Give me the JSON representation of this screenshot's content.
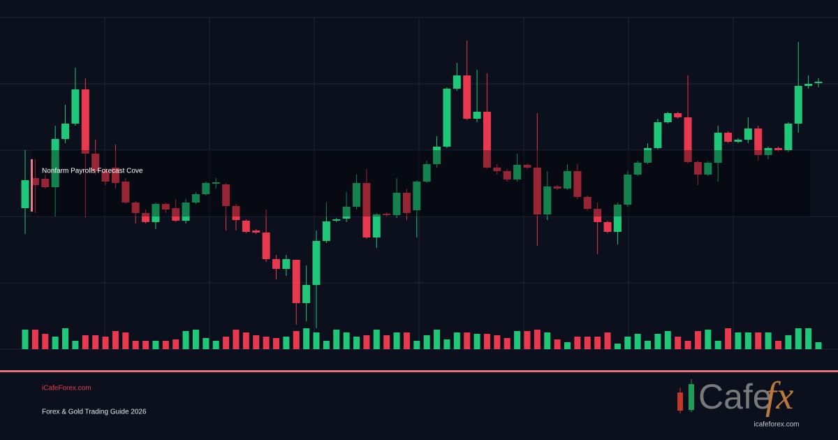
{
  "chart_data": {
    "type": "candlestick",
    "annotation": "Nonfarm Payrolls Forecast Cove",
    "up_color": "#1ec878",
    "down_color": "#e8394f",
    "grid": true,
    "ylim": [
      0,
      475
    ],
    "yticks": [
      0,
      95,
      190,
      285,
      380,
      475
    ],
    "open": [
      202,
      245,
      244,
      232,
      301,
      323,
      372,
      280,
      255,
      260,
      240,
      210,
      195,
      182,
      208,
      202,
      184,
      210,
      222,
      237,
      236,
      205,
      184,
      170,
      167,
      129,
      115,
      128,
      66,
      92,
      155,
      184,
      187,
      204,
      238,
      160,
      194,
      192,
      224,
      199,
      240,
      265,
      290,
      373,
      392,
      330,
      340,
      260,
      255,
      243,
      264,
      260,
      193,
      233,
      230,
      255,
      218,
      201,
      182,
      168,
      207,
      250,
      267,
      288,
      325,
      338,
      332,
      268,
      250,
      267,
      310,
      297,
      300,
      316,
      278,
      288,
      285,
      323,
      377,
      381
    ],
    "high": [
      285,
      272,
      250,
      320,
      350,
      403,
      388,
      300,
      260,
      293,
      245,
      212,
      200,
      210,
      210,
      215,
      215,
      225,
      240,
      245,
      238,
      208,
      186,
      172,
      200,
      135,
      135,
      128,
      120,
      170,
      210,
      188,
      225,
      250,
      258,
      195,
      196,
      245,
      230,
      242,
      270,
      305,
      375,
      410,
      442,
      400,
      395,
      265,
      258,
      280,
      266,
      338,
      255,
      235,
      265,
      265,
      220,
      210,
      184,
      210,
      255,
      270,
      295,
      330,
      340,
      340,
      392,
      270,
      269,
      320,
      312,
      302,
      332,
      320,
      290,
      290,
      325,
      440,
      392,
      388
    ],
    "low": [
      165,
      195,
      230,
      190,
      295,
      320,
      189,
      250,
      235,
      230,
      208,
      180,
      180,
      172,
      195,
      182,
      180,
      208,
      220,
      230,
      170,
      170,
      166,
      165,
      125,
      100,
      105,
      35,
      40,
      30,
      152,
      182,
      182,
      200,
      158,
      145,
      190,
      188,
      185,
      160,
      238,
      260,
      288,
      370,
      328,
      325,
      258,
      250,
      240,
      240,
      258,
      148,
      185,
      228,
      228,
      215,
      198,
      136,
      166,
      150,
      204,
      248,
      265,
      286,
      323,
      330,
      266,
      235,
      248,
      240,
      295,
      295,
      295,
      270,
      272,
      283,
      282,
      310,
      373,
      375
    ],
    "close": [
      242,
      235,
      232,
      301,
      323,
      372,
      280,
      255,
      240,
      238,
      210,
      195,
      182,
      208,
      200,
      184,
      210,
      222,
      238,
      239,
      205,
      185,
      168,
      167,
      129,
      115,
      129,
      66,
      92,
      155,
      183,
      186,
      204,
      238,
      160,
      193,
      192,
      224,
      195,
      240,
      265,
      290,
      373,
      392,
      330,
      340,
      260,
      255,
      243,
      264,
      260,
      193,
      233,
      230,
      255,
      218,
      201,
      182,
      168,
      207,
      250,
      267,
      288,
      325,
      338,
      332,
      268,
      250,
      267,
      310,
      297,
      300,
      316,
      278,
      288,
      285,
      323,
      377,
      380,
      383
    ],
    "volume": [
      28,
      28,
      22,
      18,
      30,
      12,
      20,
      20,
      18,
      26,
      24,
      12,
      12,
      12,
      12,
      14,
      26,
      28,
      16,
      12,
      18,
      28,
      24,
      20,
      18,
      16,
      18,
      26,
      30,
      24,
      12,
      28,
      24,
      18,
      20,
      28,
      20,
      24,
      24,
      12,
      20,
      28,
      14,
      24,
      24,
      22,
      22,
      20,
      16,
      26,
      26,
      28,
      24,
      14,
      10,
      18,
      18,
      18,
      24,
      8,
      18,
      22,
      12,
      22,
      26,
      18,
      12,
      26,
      28,
      12,
      30,
      24,
      24,
      24,
      24,
      12,
      20,
      30,
      30,
      10
    ]
  },
  "footer": {
    "site": "iCafeForex.com",
    "tagline": "Forex & Gold Trading Guide 2026"
  },
  "logo": {
    "word": "Cafe",
    "mark": "fx",
    "url": "icafeforex.com"
  }
}
